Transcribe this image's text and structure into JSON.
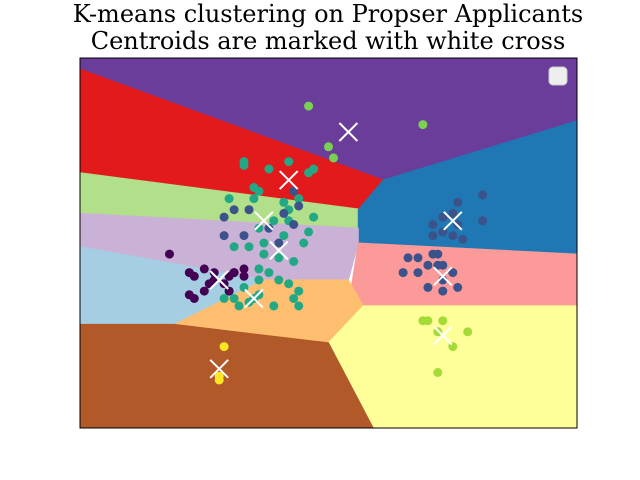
{
  "chart_data": {
    "type": "scatter",
    "title": "K-means clustering on Propser Applicants",
    "subtitle": "Centroids are marked with white cross",
    "xlabel": "",
    "ylabel": "",
    "xlim": [
      0,
      100
    ],
    "ylim": [
      0,
      100
    ],
    "x_ticks_visible": false,
    "y_ticks_visible": false,
    "legend": {
      "placement": "top-right",
      "entries": []
    },
    "regions": [
      {
        "color": "#6a3d9a",
        "polygon": [
          [
            0,
            100
          ],
          [
            100,
            100
          ],
          [
            100,
            83
          ],
          [
            61,
            67
          ],
          [
            0,
            97
          ]
        ]
      },
      {
        "color": "#e31a1c",
        "polygon": [
          [
            0,
            97
          ],
          [
            61,
            67
          ],
          [
            57,
            59
          ],
          [
            0,
            69
          ]
        ]
      },
      {
        "color": "#b2df8a",
        "polygon": [
          [
            0,
            69
          ],
          [
            57,
            59
          ],
          [
            56,
            54
          ],
          [
            0,
            58
          ]
        ]
      },
      {
        "color": "#1f78b4",
        "polygon": [
          [
            61,
            67
          ],
          [
            100,
            83
          ],
          [
            100,
            47
          ],
          [
            56,
            50
          ],
          [
            56,
            59
          ]
        ]
      },
      {
        "color": "#cab2d6",
        "polygon": [
          [
            0,
            58
          ],
          [
            56,
            54
          ],
          [
            56,
            50
          ],
          [
            54,
            40
          ],
          [
            37,
            40
          ],
          [
            0,
            49
          ]
        ]
      },
      {
        "color": "#a6cee3",
        "polygon": [
          [
            0,
            49
          ],
          [
            37,
            40
          ],
          [
            19,
            28
          ],
          [
            0,
            28
          ]
        ]
      },
      {
        "color": "#fb9a99",
        "polygon": [
          [
            56,
            50
          ],
          [
            100,
            47
          ],
          [
            100,
            33
          ],
          [
            54,
            33
          ]
        ]
      },
      {
        "color": "#fdbf6f",
        "polygon": [
          [
            19,
            28
          ],
          [
            37,
            40
          ],
          [
            54,
            40
          ],
          [
            57,
            33
          ],
          [
            50,
            23
          ]
        ]
      },
      {
        "color": "#ffff99",
        "polygon": [
          [
            50,
            23
          ],
          [
            57,
            33
          ],
          [
            100,
            33
          ],
          [
            100,
            0
          ],
          [
            59,
            0
          ]
        ]
      },
      {
        "color": "#b15928",
        "polygon": [
          [
            0,
            28
          ],
          [
            19,
            28
          ],
          [
            50,
            23
          ],
          [
            59,
            0
          ],
          [
            0,
            0
          ]
        ]
      }
    ],
    "series": [
      {
        "color": "#7ad151",
        "points": [
          [
            46,
            87
          ],
          [
            69,
            82
          ],
          [
            50,
            76
          ],
          [
            51,
            73
          ]
        ]
      },
      {
        "color": "#22a884",
        "points": [
          [
            33,
            72
          ],
          [
            33,
            71
          ],
          [
            38,
            70
          ],
          [
            42,
            72
          ],
          [
            46,
            69
          ],
          [
            47,
            70
          ],
          [
            35,
            65
          ],
          [
            36,
            64
          ],
          [
            30,
            62
          ],
          [
            35,
            62
          ],
          [
            41,
            61
          ],
          [
            44,
            62
          ],
          [
            42,
            56
          ],
          [
            42,
            59
          ],
          [
            47,
            57
          ],
          [
            36,
            54
          ],
          [
            39,
            56
          ],
          [
            46,
            53
          ],
          [
            31,
            49
          ],
          [
            34,
            49
          ],
          [
            37,
            50
          ],
          [
            41,
            52
          ],
          [
            45,
            50
          ],
          [
            37,
            47
          ],
          [
            40,
            46
          ],
          [
            38,
            42
          ],
          [
            36,
            40
          ],
          [
            40,
            40
          ],
          [
            42,
            39
          ],
          [
            33,
            38
          ],
          [
            30,
            37
          ],
          [
            31,
            35
          ],
          [
            34,
            34
          ],
          [
            39,
            33
          ],
          [
            43,
            35
          ],
          [
            44,
            33
          ],
          [
            29,
            35
          ],
          [
            32,
            33
          ],
          [
            35,
            35
          ],
          [
            36,
            36
          ],
          [
            44,
            37
          ],
          [
            36,
            43
          ],
          [
            43,
            45
          ]
        ]
      },
      {
        "color": "#3b528b",
        "points": [
          [
            43,
            64
          ],
          [
            44,
            60
          ],
          [
            41,
            58
          ],
          [
            29,
            57
          ],
          [
            31,
            59
          ],
          [
            34,
            59
          ],
          [
            33,
            52
          ],
          [
            29,
            52
          ],
          [
            38,
            54
          ],
          [
            43,
            55
          ],
          [
            40,
            50
          ],
          [
            81,
            63
          ],
          [
            76,
            61
          ],
          [
            75,
            58
          ],
          [
            81,
            56
          ],
          [
            73,
            57
          ],
          [
            76,
            55
          ],
          [
            71,
            55
          ],
          [
            73,
            53
          ],
          [
            75,
            52
          ],
          [
            71,
            52
          ],
          [
            77,
            51
          ],
          [
            72,
            47
          ],
          [
            68,
            46
          ],
          [
            71,
            47
          ],
          [
            72,
            44
          ],
          [
            75,
            42
          ],
          [
            73,
            40
          ],
          [
            76,
            38
          ],
          [
            73,
            37
          ],
          [
            70,
            38
          ],
          [
            68,
            42
          ],
          [
            70,
            44
          ],
          [
            73,
            44
          ],
          [
            65,
            42
          ],
          [
            66,
            46
          ]
        ]
      },
      {
        "color": "#440154",
        "points": [
          [
            18,
            47
          ],
          [
            22,
            42
          ],
          [
            25,
            43
          ],
          [
            27,
            42
          ],
          [
            23,
            41
          ],
          [
            26,
            39
          ],
          [
            25,
            37
          ],
          [
            31,
            42
          ],
          [
            33,
            43
          ],
          [
            33,
            41
          ],
          [
            30,
            41
          ],
          [
            27,
            40
          ],
          [
            29,
            39
          ],
          [
            30,
            37
          ],
          [
            23,
            35
          ],
          [
            22,
            36
          ],
          [
            31,
            42
          ]
        ]
      },
      {
        "color": "#a5db36",
        "points": [
          [
            69,
            29
          ],
          [
            70,
            29
          ],
          [
            73,
            29
          ],
          [
            72,
            26
          ],
          [
            78,
            26
          ],
          [
            75,
            22
          ],
          [
            72,
            15
          ]
        ]
      },
      {
        "color": "#fde725",
        "points": [
          [
            29,
            22
          ],
          [
            28,
            14
          ],
          [
            28,
            13
          ]
        ]
      }
    ],
    "centroids": [
      [
        54,
        80
      ],
      [
        42,
        67
      ],
      [
        37,
        56
      ],
      [
        75,
        56
      ],
      [
        40,
        48
      ],
      [
        73,
        41
      ],
      [
        35,
        35
      ],
      [
        28,
        40
      ],
      [
        73,
        25
      ],
      [
        28,
        16
      ]
    ]
  }
}
